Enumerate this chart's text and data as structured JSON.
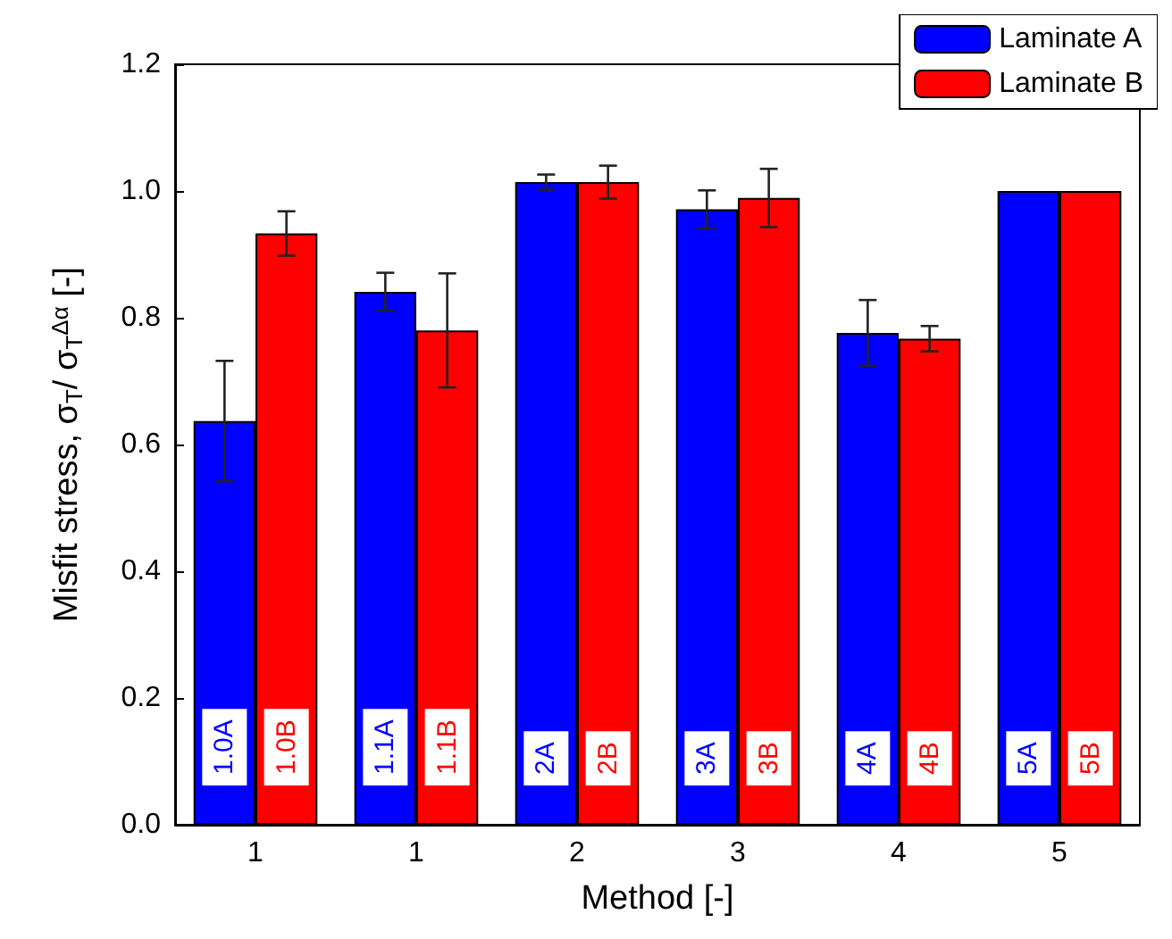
{
  "chart_data": {
    "type": "bar",
    "xlabel": "Method [-]",
    "ylabel": "Misfit stress, σ$_{T}$/ σ$_{T}$$^{Δα}$ [-]",
    "categories": [
      "1",
      "1",
      "2",
      "3",
      "4",
      "5"
    ],
    "series": [
      {
        "name": "Laminate A",
        "color": "#0000ff",
        "values": [
          0.637,
          0.841,
          1.014,
          0.971,
          0.776,
          1.0
        ],
        "errors": [
          0.095,
          0.03,
          0.012,
          0.03,
          0.052,
          null
        ]
      },
      {
        "name": "Laminate B",
        "color": "#ff0000",
        "values": [
          0.933,
          0.78,
          1.014,
          0.989,
          0.767,
          1.0
        ],
        "errors": [
          0.035,
          0.09,
          0.026,
          0.046,
          0.02,
          null
        ]
      }
    ],
    "annotations": [
      "1.0A",
      "1.0B",
      "1.1A",
      "1.1B",
      "2A",
      "2B",
      "3A",
      "3B",
      "4A",
      "4B",
      "5A",
      "5B"
    ],
    "ylim": [
      0,
      1.2
    ],
    "yticks": [
      {
        "value": 0,
        "label": "0.0"
      },
      0.2,
      0.4,
      0.6,
      0.8,
      {
        "value": 1,
        "label": "1.0"
      },
      1.2
    ],
    "grid": false,
    "legend": "top right"
  }
}
